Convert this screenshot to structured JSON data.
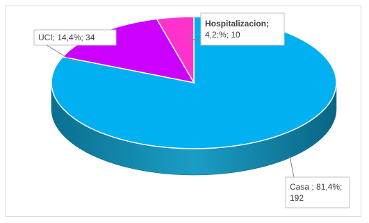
{
  "chart_data": {
    "type": "pie",
    "title": "",
    "slices": [
      {
        "category": "Casa",
        "percent": 81.4,
        "count": 192,
        "color": "#00b0f0",
        "label_lines": [
          "Casa  ; 81,4%;",
          "192"
        ]
      },
      {
        "category": "UCI",
        "percent": 14.4,
        "count": 34,
        "color": "#cc00ff",
        "label_lines": [
          "UCI; 14,4%; 34"
        ]
      },
      {
        "category": "Hospitalizacion",
        "percent": 4.2,
        "count": 10,
        "color": "#ff33cc",
        "label_lines": [
          "Hospitalizacion;",
          "4,2;%; 10"
        ]
      }
    ],
    "style": "3d",
    "legend": "none"
  }
}
